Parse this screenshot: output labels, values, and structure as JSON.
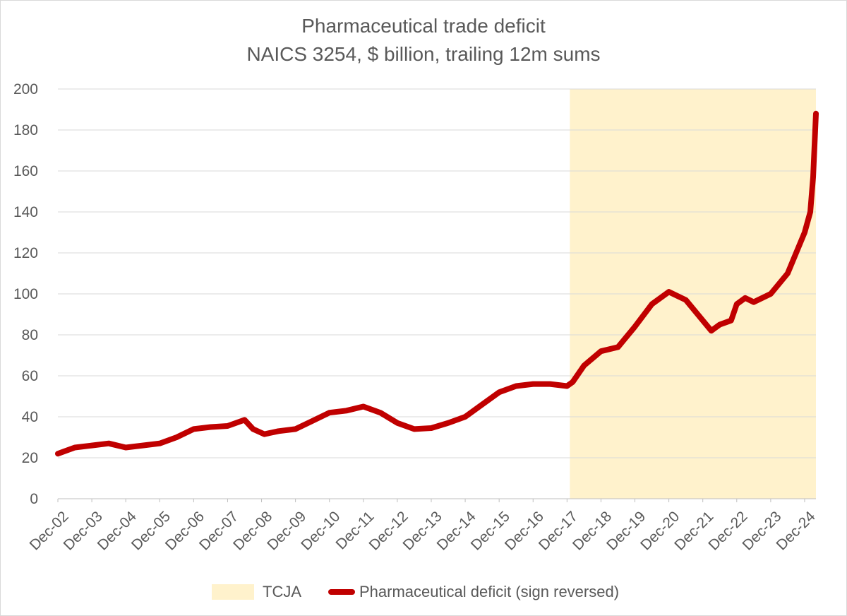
{
  "chart_data": {
    "type": "line",
    "title": "Pharmaceutical trade deficit",
    "subtitle": "NAICS 3254, $ billion, trailing 12m sums",
    "xlabel": "",
    "ylabel": "",
    "ylim": [
      0,
      200
    ],
    "yticks": [
      0,
      20,
      40,
      60,
      80,
      100,
      120,
      140,
      160,
      180,
      200
    ],
    "x_tick_labels": [
      "Dec-02",
      "Dec-03",
      "Dec-04",
      "Dec-05",
      "Dec-06",
      "Dec-07",
      "Dec-08",
      "Dec-09",
      "Dec-10",
      "Dec-11",
      "Dec-12",
      "Dec-13",
      "Dec-14",
      "Dec-15",
      "Dec-16",
      "Dec-17",
      "Dec-18",
      "Dec-19",
      "Dec-20",
      "Dec-21",
      "Dec-22",
      "Dec-23",
      "Dec-24"
    ],
    "grid": true,
    "legend_position": "bottom",
    "shaded_region": {
      "name": "TCJA",
      "start": "Jan-18",
      "end": "Apr-25",
      "color": "#FFF2CC"
    },
    "series": [
      {
        "name": "Pharmaceutical deficit (sign reversed)",
        "color": "#C00000",
        "start": "Dec-02",
        "end": "Apr-25",
        "points": [
          [
            "Dec-02",
            22
          ],
          [
            "Jun-03",
            25
          ],
          [
            "Dec-03",
            26
          ],
          [
            "Jun-04",
            27
          ],
          [
            "Dec-04",
            25
          ],
          [
            "Jun-05",
            26
          ],
          [
            "Dec-05",
            27
          ],
          [
            "Jun-06",
            30
          ],
          [
            "Dec-06",
            34
          ],
          [
            "Jun-07",
            35
          ],
          [
            "Dec-07",
            35.5
          ],
          [
            "Jun-08",
            38.5
          ],
          [
            "Sep-08",
            34
          ],
          [
            "Jan-09",
            31.5
          ],
          [
            "Jun-09",
            33
          ],
          [
            "Dec-09",
            34
          ],
          [
            "Jun-10",
            38
          ],
          [
            "Dec-10",
            42
          ],
          [
            "Jun-11",
            43
          ],
          [
            "Dec-11",
            45
          ],
          [
            "Jun-12",
            42
          ],
          [
            "Dec-12",
            37
          ],
          [
            "Jun-13",
            34
          ],
          [
            "Dec-13",
            34.5
          ],
          [
            "Jun-14",
            37
          ],
          [
            "Dec-14",
            40
          ],
          [
            "Jun-15",
            46
          ],
          [
            "Dec-15",
            52
          ],
          [
            "Jun-16",
            55
          ],
          [
            "Dec-16",
            56
          ],
          [
            "Jun-17",
            56
          ],
          [
            "Dec-17",
            55
          ],
          [
            "Feb-18",
            57
          ],
          [
            "Jun-18",
            65
          ],
          [
            "Dec-18",
            72
          ],
          [
            "Jun-19",
            74
          ],
          [
            "Dec-19",
            84
          ],
          [
            "Jun-20",
            95
          ],
          [
            "Dec-20",
            101
          ],
          [
            "Jun-21",
            97
          ],
          [
            "Dec-21",
            87
          ],
          [
            "Mar-22",
            82
          ],
          [
            "Jun-22",
            85
          ],
          [
            "Oct-22",
            87
          ],
          [
            "Dec-22",
            95
          ],
          [
            "Mar-23",
            98
          ],
          [
            "Jun-23",
            96
          ],
          [
            "Dec-23",
            100
          ],
          [
            "Jun-24",
            110
          ],
          [
            "Dec-24",
            130
          ],
          [
            "Feb-25",
            140
          ],
          [
            "Mar-25",
            157
          ],
          [
            "Apr-25",
            188
          ]
        ]
      }
    ]
  }
}
